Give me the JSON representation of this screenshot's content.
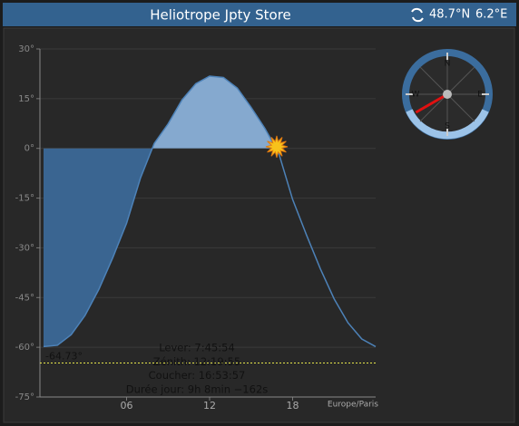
{
  "header": {
    "title": "Heliotrope Jpty Store",
    "latitude": "48.7°N",
    "longitude": "6.2°E"
  },
  "chart_data": {
    "type": "area",
    "x": [
      0,
      1,
      2,
      3,
      4,
      5,
      6,
      7,
      8,
      9,
      10,
      11,
      12,
      13,
      14,
      15,
      16,
      17,
      18,
      19,
      20,
      21,
      22,
      23,
      24
    ],
    "values": [
      -59.8,
      -59.4,
      -56.2,
      -50.4,
      -42.5,
      -33.0,
      -22.6,
      -9,
      1.5,
      7.4,
      14.6,
      19.5,
      21.8,
      21.4,
      18.2,
      12.4,
      6,
      -1.5,
      -15.4,
      -26.1,
      -36.3,
      -45.4,
      -52.6,
      -57.5,
      -59.8
    ],
    "xlim": [
      0,
      24
    ],
    "ylim": [
      -75,
      30
    ],
    "xticks": [
      {
        "value": 6,
        "label": "06"
      },
      12,
      18
    ],
    "yticks": [
      {
        "value": 30,
        "label": "30°"
      },
      {
        "value": 15,
        "label": "15°"
      },
      {
        "value": 0,
        "label": "0°"
      },
      {
        "value": -15,
        "label": "-15°"
      },
      {
        "value": -30,
        "label": "-30°"
      },
      {
        "value": -45,
        "label": "-45°"
      },
      {
        "value": -60,
        "label": "-60°"
      },
      {
        "value": -75,
        "label": "-75°"
      }
    ],
    "grid": true,
    "color": "#4d82b8",
    "fill_below": "#3a6591",
    "fill_above": "#85a9cf",
    "timezone": "Europe/Paris",
    "min_line": {
      "value": -64.73,
      "label": "-64.73°"
    },
    "sun": {
      "x": 16.85,
      "y": 0.5
    }
  },
  "info": [
    "Lever: 7:45:54",
    "Zénith: 12:19:55",
    "Coucher: 16:53:57",
    "Durée jour: 9h 8min −162s"
  ],
  "compass": {
    "labels": [
      "N",
      "E",
      "S",
      "W"
    ],
    "azimuth": 240
  }
}
